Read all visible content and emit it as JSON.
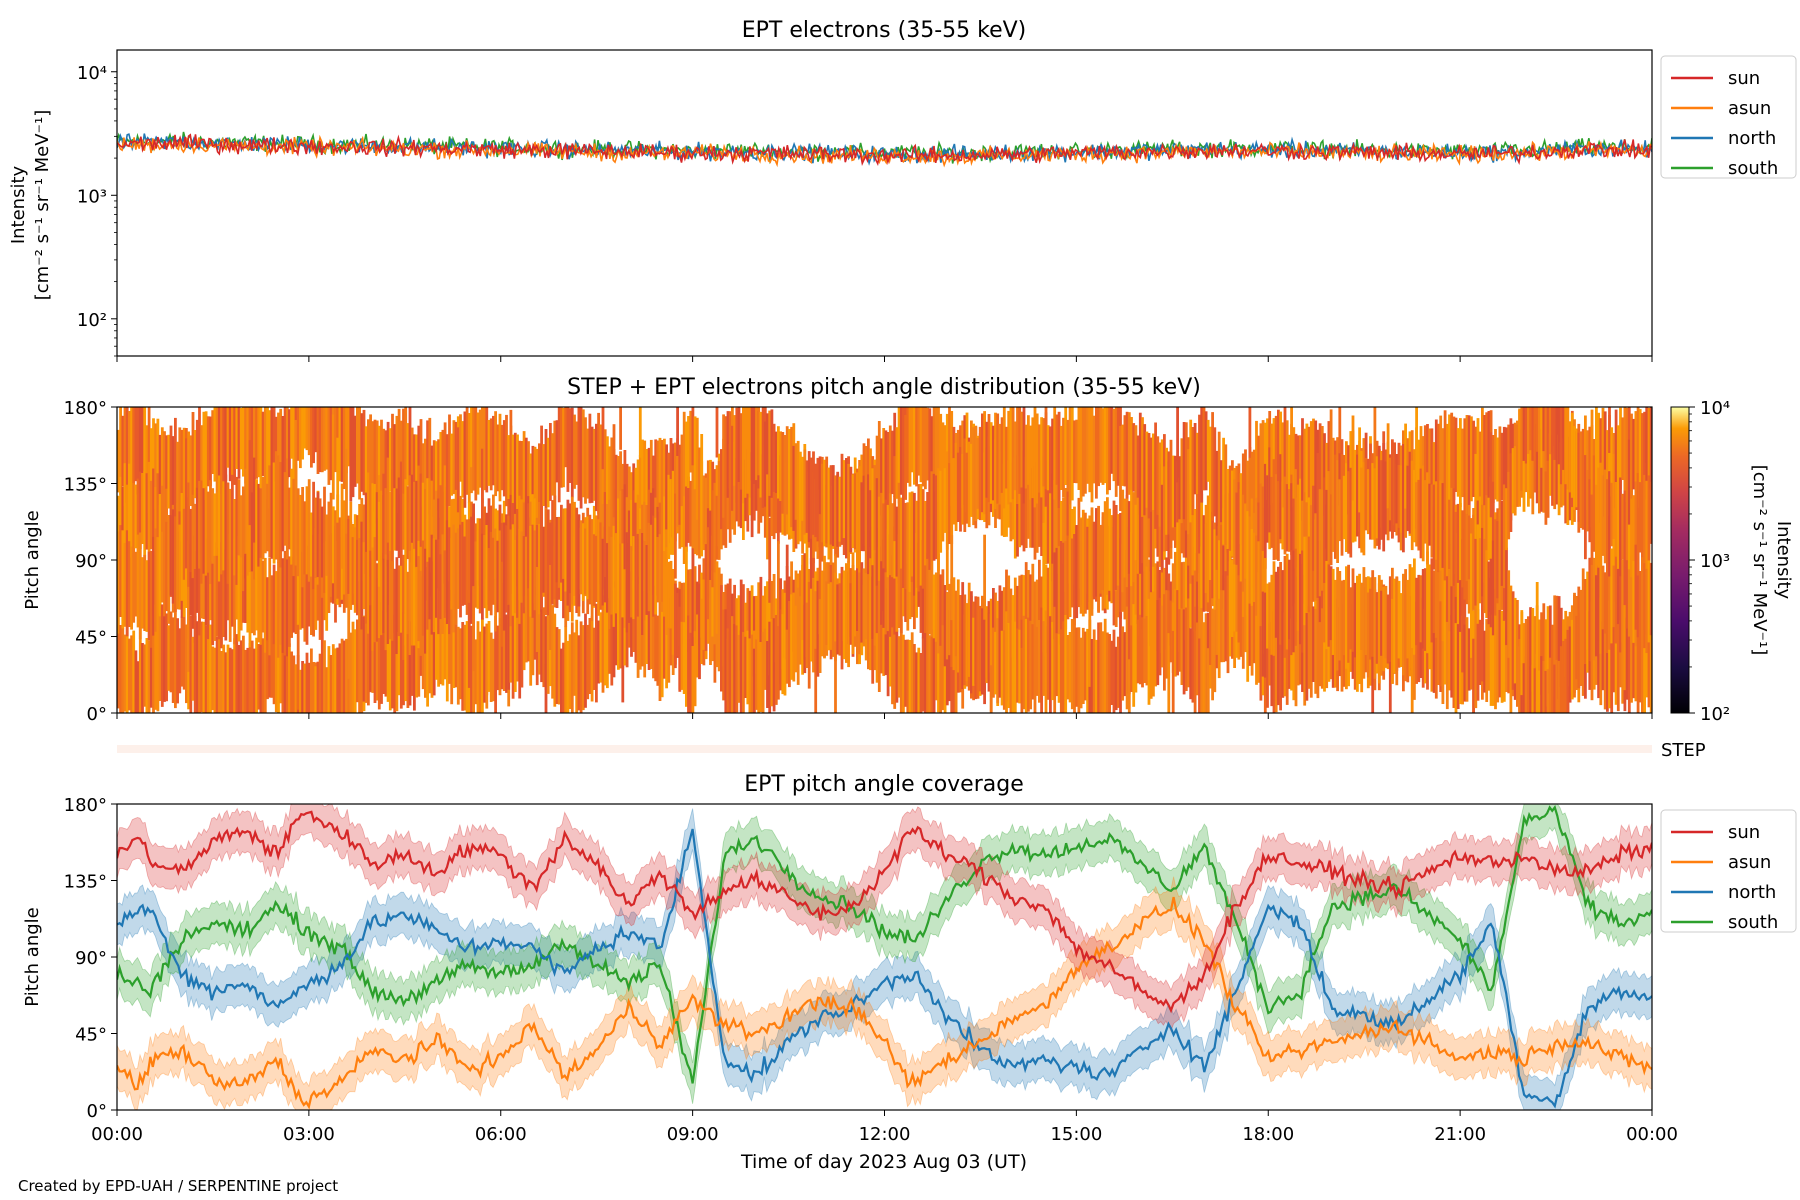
{
  "footer": "Created by EPD-UAH / SERPENTINE project",
  "xaxis": {
    "ticks": [
      "00:00",
      "03:00",
      "06:00",
      "09:00",
      "12:00",
      "15:00",
      "18:00",
      "21:00",
      "00:00"
    ],
    "label": "Time of day 2023 Aug 03 (UT)"
  },
  "colors": {
    "sun": "#d62728",
    "asun": "#ff7f0e",
    "north": "#1f77b4",
    "south": "#2ca02c"
  },
  "chart_data": [
    {
      "type": "line",
      "title": "EPT electrons (35-55 keV)",
      "ylabel_lines": [
        "Intensity",
        "[cm⁻² s⁻¹ sr⁻¹ MeV⁻¹]"
      ],
      "yscale": "log",
      "ylim": [
        50,
        15000
      ],
      "ytick_labels": [
        "10²",
        "10³",
        "10⁴"
      ],
      "ytick_values": [
        100,
        1000,
        10000
      ],
      "x_unit": "hours since 2023 Aug 03 00:00 UT",
      "xlim": [
        0,
        24
      ],
      "legend": "outside-right",
      "series": [
        {
          "name": "sun",
          "mean": [
            2600,
            2650,
            2550,
            2500,
            2450,
            2400,
            2350,
            2300,
            2250,
            2200,
            2200,
            2150,
            2100,
            2100,
            2150,
            2200,
            2250,
            2300,
            2300,
            2250,
            2200,
            2150,
            2200,
            2350,
            2300
          ],
          "spread": 0.18
        },
        {
          "name": "asun",
          "mean": [
            2550,
            2600,
            2500,
            2450,
            2400,
            2350,
            2300,
            2250,
            2200,
            2200,
            2150,
            2100,
            2100,
            2050,
            2100,
            2150,
            2200,
            2250,
            2250,
            2200,
            2150,
            2150,
            2200,
            2300,
            2250
          ],
          "spread": 0.18
        },
        {
          "name": "north",
          "mean": [
            2650,
            2700,
            2600,
            2550,
            2500,
            2450,
            2400,
            2350,
            2300,
            2250,
            2250,
            2200,
            2150,
            2150,
            2200,
            2250,
            2300,
            2350,
            2350,
            2300,
            2250,
            2200,
            2250,
            2400,
            2350
          ],
          "spread": 0.18
        },
        {
          "name": "south",
          "mean": [
            2700,
            2750,
            2650,
            2600,
            2550,
            2500,
            2450,
            2400,
            2350,
            2300,
            2300,
            2250,
            2200,
            2200,
            2250,
            2300,
            2350,
            2400,
            2400,
            2350,
            2300,
            2250,
            2300,
            2450,
            2400
          ],
          "spread": 0.18
        }
      ]
    },
    {
      "type": "heatmap",
      "title": "STEP + EPT electrons pitch angle distribution (35-55 keV)",
      "ylabel": "Pitch angle",
      "ytick_labels": [
        "0°",
        "45°",
        "90°",
        "135°",
        "180°"
      ],
      "ylim": [
        0,
        180
      ],
      "colorbar": {
        "label": "Intensity",
        "label_unit": "[cm⁻² s⁻¹ sr⁻¹ MeV⁻¹]",
        "scale": "log",
        "range": [
          100,
          10000
        ],
        "tick_labels": [
          "10²",
          "10³",
          "10⁴"
        ],
        "colormap": "inferno"
      },
      "value_range_shown": [
        2000,
        3000
      ],
      "step_label": "STEP"
    },
    {
      "type": "line",
      "title": "EPT pitch angle coverage",
      "ylabel": "Pitch angle",
      "ytick_labels": [
        "0°",
        "45°",
        "90°",
        "135°",
        "180°"
      ],
      "ylim": [
        0,
        180
      ],
      "x_unit": "hours since 2023 Aug 03 00:00 UT",
      "xlim": [
        0,
        24
      ],
      "legend": "outside-right",
      "band_halfwidth_deg": 12,
      "series": [
        {
          "name": "sun",
          "x": [
            0,
            0.3,
            0.6,
            1,
            1.3,
            1.6,
            2,
            2.5,
            2.8,
            3,
            3.3,
            3.6,
            4,
            4.5,
            5,
            5.5,
            6,
            6.5,
            7,
            7.5,
            8,
            8.5,
            9,
            9.5,
            10,
            10.5,
            11,
            11.5,
            12,
            12.4,
            12.6,
            13,
            13.5,
            14,
            14.5,
            15,
            15.5,
            16,
            16.5,
            17,
            17.5,
            18,
            18.5,
            19,
            19.5,
            20,
            20.5,
            21,
            21.5,
            22,
            22.5,
            23,
            23.5,
            24
          ],
          "y": [
            150,
            160,
            145,
            140,
            150,
            160,
            165,
            150,
            170,
            175,
            168,
            160,
            145,
            150,
            140,
            155,
            150,
            130,
            160,
            145,
            120,
            140,
            115,
            130,
            135,
            125,
            115,
            120,
            140,
            165,
            160,
            150,
            140,
            125,
            120,
            95,
            85,
            70,
            60,
            80,
            120,
            150,
            145,
            140,
            135,
            130,
            140,
            150,
            145,
            150,
            140,
            140,
            150,
            155
          ]
        },
        {
          "name": "asun",
          "x": [
            0,
            0.3,
            0.6,
            1,
            1.3,
            1.6,
            2,
            2.5,
            2.8,
            3,
            3.3,
            3.6,
            4,
            4.5,
            5,
            5.5,
            6,
            6.5,
            7,
            7.5,
            8,
            8.5,
            9,
            9.5,
            10,
            10.5,
            11,
            11.5,
            12,
            12.4,
            12.6,
            13,
            13.5,
            14,
            14.5,
            15,
            15.5,
            16,
            16.5,
            17,
            17.5,
            18,
            18.5,
            19,
            19.5,
            20,
            20.5,
            21,
            21.5,
            22,
            22.5,
            23,
            23.5,
            24
          ],
          "y": [
            25,
            15,
            30,
            35,
            25,
            15,
            15,
            30,
            10,
            5,
            12,
            20,
            35,
            30,
            40,
            25,
            30,
            50,
            20,
            35,
            60,
            40,
            65,
            50,
            45,
            55,
            65,
            60,
            40,
            15,
            20,
            30,
            40,
            55,
            60,
            85,
            95,
            110,
            120,
            100,
            60,
            30,
            35,
            40,
            45,
            50,
            40,
            30,
            35,
            30,
            40,
            40,
            30,
            25
          ]
        },
        {
          "name": "north",
          "x": [
            0,
            0.5,
            1,
            1.5,
            2,
            2.5,
            3,
            3.5,
            4,
            4.5,
            5,
            5.5,
            6,
            6.5,
            7,
            7.5,
            8,
            8.5,
            9,
            9.5,
            10,
            10.5,
            11,
            11.5,
            12,
            12.5,
            13,
            13.5,
            14,
            14.5,
            15,
            15.5,
            16,
            16.5,
            17,
            17.5,
            18,
            18.5,
            19,
            19.5,
            20,
            20.5,
            21,
            21.5,
            22,
            22.5,
            23,
            23.5,
            24
          ],
          "y": [
            110,
            120,
            80,
            70,
            75,
            60,
            75,
            85,
            110,
            115,
            105,
            95,
            100,
            95,
            80,
            95,
            105,
            95,
            165,
            30,
            20,
            40,
            55,
            60,
            75,
            80,
            55,
            35,
            25,
            30,
            25,
            20,
            35,
            50,
            25,
            70,
            120,
            110,
            60,
            55,
            50,
            65,
            80,
            110,
            10,
            5,
            60,
            70,
            65
          ]
        },
        {
          "name": "south",
          "x": [
            0,
            0.5,
            1,
            1.5,
            2,
            2.5,
            3,
            3.5,
            4,
            4.5,
            5,
            5.5,
            6,
            6.5,
            7,
            7.5,
            8,
            8.5,
            9,
            9.5,
            10,
            10.5,
            11,
            11.5,
            12,
            12.5,
            13,
            13.5,
            14,
            14.5,
            15,
            15.5,
            16,
            16.5,
            17,
            17.5,
            18,
            18.5,
            19,
            19.5,
            20,
            20.5,
            21,
            21.5,
            22,
            22.5,
            23,
            23.5,
            24
          ],
          "y": [
            80,
            70,
            100,
            110,
            105,
            120,
            105,
            95,
            70,
            65,
            75,
            85,
            80,
            85,
            100,
            85,
            75,
            85,
            15,
            150,
            160,
            140,
            125,
            120,
            105,
            100,
            125,
            145,
            155,
            150,
            155,
            160,
            145,
            130,
            155,
            110,
            60,
            70,
            120,
            125,
            130,
            115,
            100,
            70,
            170,
            175,
            120,
            110,
            115
          ]
        }
      ]
    }
  ]
}
